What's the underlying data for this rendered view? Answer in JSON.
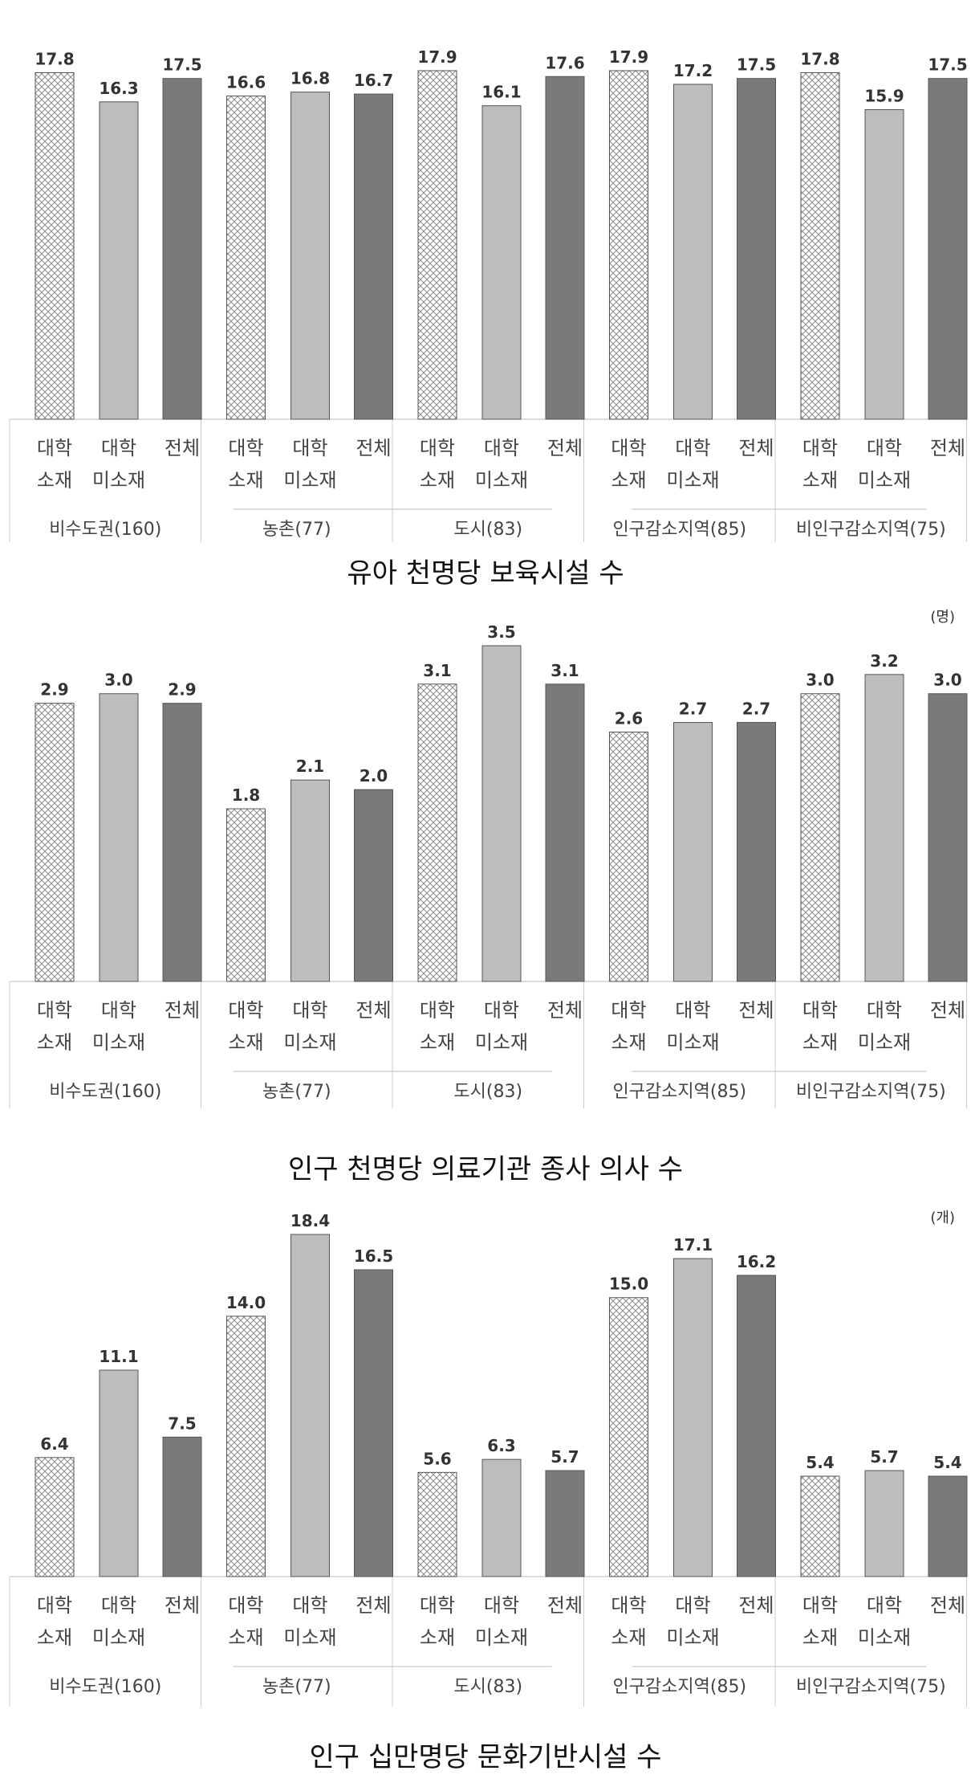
{
  "chart_data": [
    {
      "type": "bar",
      "title": "유아 천명당 보육시설 수",
      "unit": "",
      "ylim": [
        0,
        17.9
      ],
      "categories": [
        {
          "line1": "대학",
          "line2": "소재"
        },
        {
          "line1": "대학",
          "line2": "미소재"
        },
        {
          "line1": "전체",
          "line2": ""
        }
      ],
      "groups": [
        {
          "name": "비수도권(160)",
          "values": [
            17.8,
            16.3,
            17.5
          ],
          "labels": [
            "17.8",
            "16.3",
            "17.5"
          ]
        },
        {
          "name": "농촌(77)",
          "values": [
            16.6,
            16.8,
            16.7
          ],
          "labels": [
            "16.6",
            "16.8",
            "16.7"
          ]
        },
        {
          "name": "도시(83)",
          "values": [
            17.9,
            16.1,
            17.6
          ],
          "labels": [
            "17.9",
            "16.1",
            "17.6"
          ]
        },
        {
          "name": "인구감소지역(85)",
          "values": [
            17.9,
            17.2,
            17.5
          ],
          "labels": [
            "17.9",
            "17.2",
            "17.5"
          ]
        },
        {
          "name": "비인구감소지역(75)",
          "values": [
            17.8,
            15.9,
            17.5
          ],
          "labels": [
            "17.8",
            "15.9",
            "17.5"
          ]
        }
      ]
    },
    {
      "type": "bar",
      "title": "인구 천명당 의료기관 종사 의사 수",
      "unit": "(명)",
      "ylim": [
        0,
        3.5
      ],
      "categories": [
        {
          "line1": "대학",
          "line2": "소재"
        },
        {
          "line1": "대학",
          "line2": "미소재"
        },
        {
          "line1": "전체",
          "line2": ""
        }
      ],
      "groups": [
        {
          "name": "비수도권(160)",
          "values": [
            2.9,
            3.0,
            2.9
          ],
          "labels": [
            "2.9",
            "3.0",
            "2.9"
          ]
        },
        {
          "name": "농촌(77)",
          "values": [
            1.8,
            2.1,
            2.0
          ],
          "labels": [
            "1.8",
            "2.1",
            "2.0"
          ]
        },
        {
          "name": "도시(83)",
          "values": [
            3.1,
            3.5,
            3.1
          ],
          "labels": [
            "3.1",
            "3.5",
            "3.1"
          ]
        },
        {
          "name": "인구감소지역(85)",
          "values": [
            2.6,
            2.7,
            2.7
          ],
          "labels": [
            "2.6",
            "2.7",
            "2.7"
          ]
        },
        {
          "name": "비인구감소지역(75)",
          "values": [
            3.0,
            3.2,
            3.0
          ],
          "labels": [
            "3.0",
            "3.2",
            "3.0"
          ]
        }
      ]
    },
    {
      "type": "bar",
      "title": "인구 십만명당 문화기반시설 수",
      "unit": "(개)",
      "ylim": [
        0,
        18.4
      ],
      "categories": [
        {
          "line1": "대학",
          "line2": "소재"
        },
        {
          "line1": "대학",
          "line2": "미소재"
        },
        {
          "line1": "전체",
          "line2": ""
        }
      ],
      "groups": [
        {
          "name": "비수도권(160)",
          "values": [
            6.4,
            11.1,
            7.5
          ],
          "labels": [
            "6.4",
            "11.1",
            "7.5"
          ]
        },
        {
          "name": "농촌(77)",
          "values": [
            14.0,
            18.4,
            16.5
          ],
          "labels": [
            "14.0",
            "18.4",
            "16.5"
          ]
        },
        {
          "name": "도시(83)",
          "values": [
            5.6,
            6.3,
            5.7
          ],
          "labels": [
            "5.6",
            "6.3",
            "5.7"
          ]
        },
        {
          "name": "인구감소지역(85)",
          "values": [
            15.0,
            17.1,
            16.2
          ],
          "labels": [
            "15.0",
            "17.1",
            "16.2"
          ]
        },
        {
          "name": "비인구감소지역(75)",
          "values": [
            5.4,
            5.7,
            5.4
          ],
          "labels": [
            "5.4",
            "5.7",
            "5.4"
          ]
        }
      ]
    }
  ],
  "colors": {
    "hatched": "#8a8a8a",
    "light": "#bdbdbd",
    "dark": "#7a7a7a",
    "border": "#555555"
  }
}
